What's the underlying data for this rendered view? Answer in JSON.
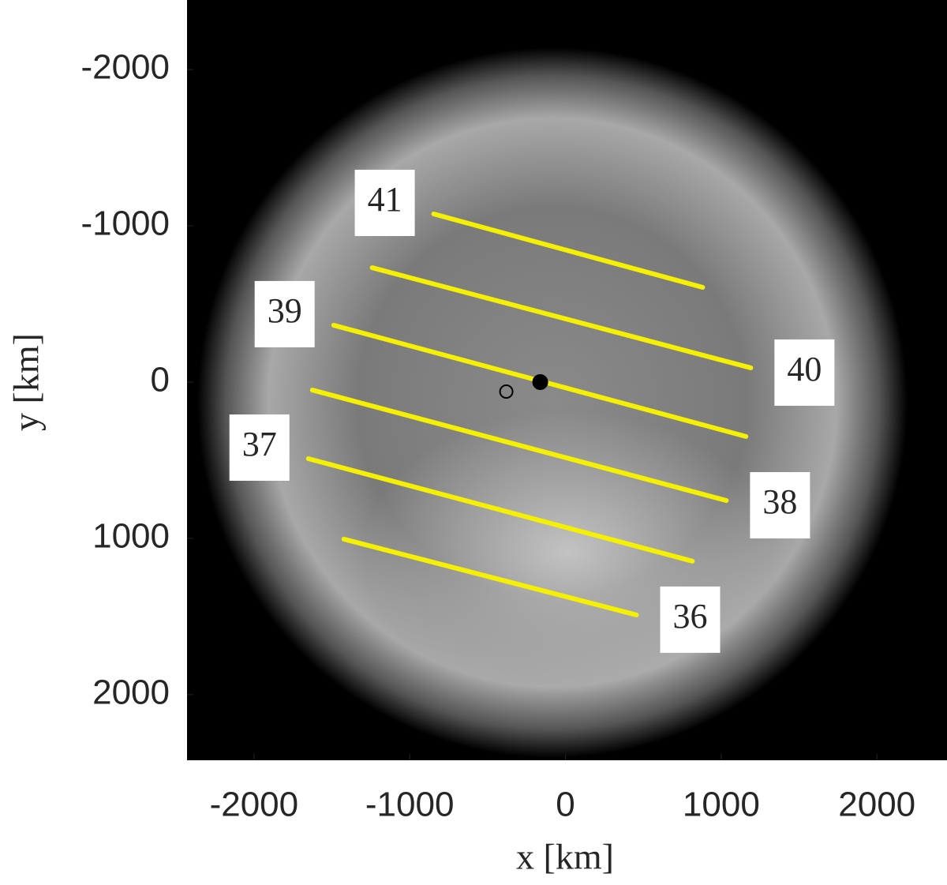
{
  "chart_data": {
    "type": "line",
    "xlabel": "x [km]",
    "ylabel": "y [km]",
    "xlim": [
      -2430,
      2450
    ],
    "ylim": [
      -2445,
      2420
    ],
    "xticks": [
      -2000,
      -1000,
      0,
      1000,
      2000
    ],
    "yticks": [
      -2000,
      -1000,
      0,
      1000,
      2000
    ],
    "y_reversed": true,
    "color": "#f5f000",
    "series": [
      {
        "name": "41",
        "x": [
          -846,
          881
        ],
        "values": [
          -1076,
          -606
        ]
      },
      {
        "name": "40",
        "x": [
          -1241,
          1190
        ],
        "values": [
          -732,
          -91
        ]
      },
      {
        "name": "39",
        "x": [
          -1489,
          1159
        ],
        "values": [
          -364,
          348
        ]
      },
      {
        "name": "38",
        "x": [
          -1625,
          1033
        ],
        "values": [
          51,
          758
        ]
      },
      {
        "name": "37",
        "x": [
          -1651,
          815
        ],
        "values": [
          490,
          1146
        ]
      },
      {
        "name": "36",
        "x": [
          -1423,
          456
        ],
        "values": [
          1005,
          1490
        ]
      }
    ],
    "points": [
      {
        "x": -162,
        "y": 0,
        "filled": true
      },
      {
        "x": -380,
        "y": 61,
        "filled": false
      }
    ]
  }
}
